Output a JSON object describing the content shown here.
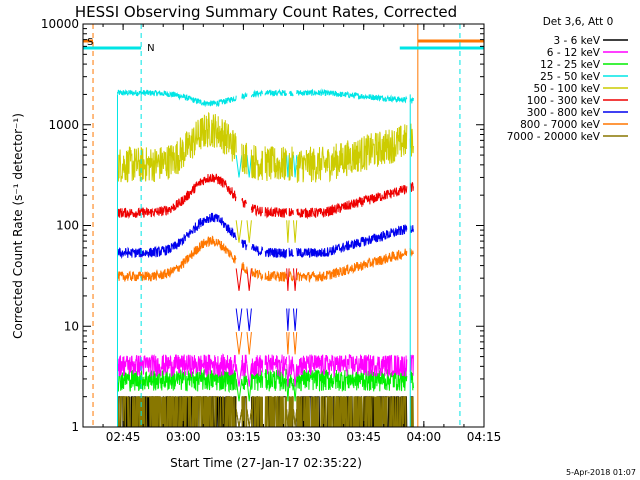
{
  "chart_data": {
    "type": "line",
    "title": "HESSI Observing Summary Count Rates, Corrected",
    "xlabel": "Start Time (27-Jan-17 02:35:22)",
    "ylabel": "Corrected Count Rate (s⁻¹ detector⁻¹)",
    "y_scale": "log",
    "ylim": [
      1,
      10000
    ],
    "xlim_minutes_from_0235": [
      0,
      100
    ],
    "x_ticks": [
      {
        "label": "02:45",
        "minutes": 10
      },
      {
        "label": "03:00",
        "minutes": 25
      },
      {
        "label": "03:15",
        "minutes": 40
      },
      {
        "label": "03:30",
        "minutes": 55
      },
      {
        "label": "03:45",
        "minutes": 70
      },
      {
        "label": "04:00",
        "minutes": 85
      },
      {
        "label": "04:15",
        "minutes": 100
      }
    ],
    "y_ticks": [
      {
        "label": "1",
        "value": 1
      },
      {
        "label": "10",
        "value": 10
      },
      {
        "label": "100",
        "value": 100
      },
      {
        "label": "1000",
        "value": 1000
      },
      {
        "label": "10000",
        "value": 10000
      }
    ],
    "grid": false,
    "legend_position": "right",
    "legend_header": "Det 3,6, Att 0",
    "series": [
      {
        "name": "3 - 6 keV",
        "color": "#000000",
        "level": 1.5
      },
      {
        "name": "6 - 12 keV",
        "color": "#ff00ff",
        "level": 4.2
      },
      {
        "name": "12 - 25 keV",
        "color": "#00ee00",
        "level": 3.0
      },
      {
        "name": "25 - 50 keV",
        "color": "#00e5e5",
        "level": 2000
      },
      {
        "name": "50 - 100 keV",
        "color": "#cccc00",
        "level": 450
      },
      {
        "name": "100 - 300 keV",
        "color": "#ee0000",
        "level": 150
      },
      {
        "name": "300 - 800 keV",
        "color": "#0000ee",
        "level": 60
      },
      {
        "name": "800 - 7000 keV",
        "color": "#ff7700",
        "level": 35
      },
      {
        "name": "7000 - 20000 keV",
        "color": "#887700",
        "level": 1.5
      }
    ],
    "flags": [
      {
        "label": "S",
        "color": "#ff7700"
      },
      {
        "label": "N",
        "color": "#00e5e5"
      }
    ],
    "footer_date": "5-Apr-2018 01:07"
  }
}
